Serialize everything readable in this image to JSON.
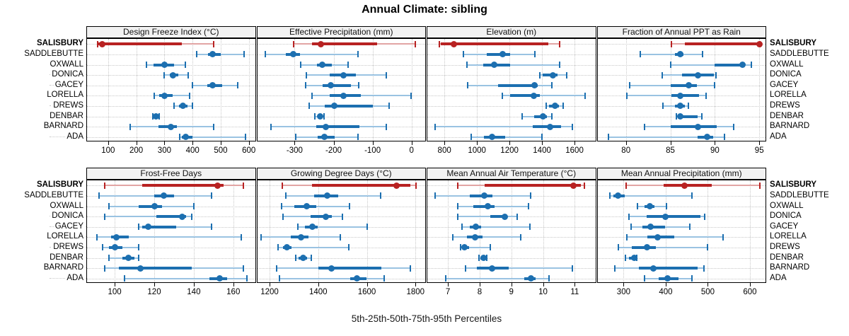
{
  "title": "Annual Climate: sibling",
  "footer": "5th-25th-50th-75th-95th Percentiles",
  "colors": {
    "highlight": "#b82222",
    "highlight_light": "#e2a5a4",
    "normal": "#1c6fb0",
    "normal_light": "#9ac3e2",
    "strip_bg": "#f2f2f2",
    "grid": "#c8c8c8"
  },
  "stations": [
    {
      "name": "SALISBURY",
      "highlight": true
    },
    {
      "name": "SADDLEBUTTE",
      "highlight": false
    },
    {
      "name": "OXWALL",
      "highlight": false
    },
    {
      "name": "DONICA",
      "highlight": false
    },
    {
      "name": "GACEY",
      "highlight": false
    },
    {
      "name": "LORELLA",
      "highlight": false
    },
    {
      "name": "DREWS",
      "highlight": false
    },
    {
      "name": "DENBAR",
      "highlight": false
    },
    {
      "name": "BARNARD",
      "highlight": false
    },
    {
      "name": "ADA",
      "highlight": false
    }
  ],
  "chart_data": {
    "type": "dotplot-percentiles",
    "percentile_labels": [
      "5th",
      "25th",
      "50th",
      "75th",
      "95th"
    ],
    "layout": {
      "rows": 2,
      "cols": 4,
      "grid": "dotted",
      "legend": "none"
    },
    "panels": [
      {
        "title": "Design Freeze Index (°C)",
        "domain": [
          25,
          622
        ],
        "ticks": [
          100,
          200,
          300,
          400,
          500,
          600
        ],
        "series": [
          [
            63,
            66,
            80,
            363,
            475
          ],
          [
            415,
            455,
            470,
            500,
            583
          ],
          [
            235,
            262,
            300,
            335,
            375
          ],
          [
            300,
            318,
            330,
            350,
            385
          ],
          [
            400,
            452,
            472,
            505,
            560
          ],
          [
            264,
            282,
            300,
            330,
            389
          ],
          [
            333,
            352,
            365,
            381,
            400
          ],
          [
            258,
            264,
            270,
            276,
            282
          ],
          [
            178,
            280,
            323,
            345,
            475
          ],
          [
            354,
            362,
            375,
            400,
            588
          ]
        ]
      },
      {
        "title": "Effective Precipitation (mm)",
        "domain": [
          -396,
          35
        ],
        "ticks": [
          -300,
          -200,
          -100,
          0
        ],
        "series": [
          [
            -302,
            -255,
            -232,
            -88,
            10
          ],
          [
            -376,
            -322,
            -303,
            -287,
            -137
          ],
          [
            -285,
            -243,
            -229,
            -204,
            -163
          ],
          [
            -270,
            -210,
            -174,
            -143,
            -65
          ],
          [
            -272,
            -228,
            -208,
            -155,
            -135
          ],
          [
            -255,
            -210,
            -174,
            -131,
            -2
          ],
          [
            -262,
            -222,
            -199,
            -100,
            -57
          ],
          [
            -248,
            -241,
            -235,
            -229,
            -224
          ],
          [
            -360,
            -245,
            -220,
            -134,
            -65
          ],
          [
            -297,
            -240,
            -224,
            -198,
            -137
          ]
        ]
      },
      {
        "title": "Elevation (m)",
        "domain": [
          695,
          1728
        ],
        "ticks": [
          800,
          1000,
          1200,
          1400,
          1600
        ],
        "series": [
          [
            768,
            778,
            860,
            1440,
            1508
          ],
          [
            915,
            1060,
            1160,
            1205,
            1355
          ],
          [
            940,
            1040,
            1105,
            1205,
            1508
          ],
          [
            1385,
            1403,
            1468,
            1495,
            1550
          ],
          [
            945,
            1130,
            1352,
            1372,
            1462
          ],
          [
            1155,
            1205,
            1350,
            1385,
            1663
          ],
          [
            1425,
            1445,
            1480,
            1502,
            1528
          ],
          [
            1276,
            1350,
            1404,
            1430,
            1462
          ],
          [
            745,
            1343,
            1450,
            1515,
            1585
          ],
          [
            963,
            1045,
            1095,
            1175,
            1400
          ]
        ]
      },
      {
        "title": "Fraction of Annual PPT as Rain",
        "domain": [
          76.8,
          95.7
        ],
        "ticks": [
          80,
          85,
          90,
          95
        ],
        "series": [
          [
            85.1,
            86.6,
            95.0,
            95.0,
            95.1
          ],
          [
            81.6,
            85.5,
            86.1,
            86.5,
            88.6
          ],
          [
            85.0,
            90.0,
            93.1,
            93.4,
            94.1
          ],
          [
            84.1,
            86.3,
            88.1,
            89.9,
            90.1
          ],
          [
            80.4,
            85.0,
            87.1,
            88.0,
            90.0
          ],
          [
            80.1,
            85.1,
            86.1,
            88.2,
            89.0
          ],
          [
            84.2,
            85.5,
            86.1,
            86.6,
            87.0
          ],
          [
            85.7,
            85.9,
            86.1,
            88.1,
            88.5
          ],
          [
            82.1,
            85.0,
            88.1,
            90.2,
            92.1
          ],
          [
            78.0,
            88.1,
            89.1,
            89.8,
            91.1
          ]
        ]
      },
      {
        "title": "Frost-Free Days",
        "domain": [
          86,
          171
        ],
        "ticks": [
          100,
          120,
          140,
          160
        ],
        "series": [
          [
            95,
            114,
            152,
            155,
            165
          ],
          [
            92,
            120,
            125,
            130,
            149
          ],
          [
            97,
            112,
            120,
            124,
            140
          ],
          [
            95,
            121,
            134,
            136,
            139
          ],
          [
            112,
            114,
            117,
            131,
            149
          ],
          [
            91,
            98,
            101,
            107,
            164
          ],
          [
            94,
            97,
            100,
            104,
            112
          ],
          [
            97,
            104,
            107,
            110,
            112
          ],
          [
            95,
            102,
            113,
            139,
            165
          ],
          [
            105,
            148,
            153,
            157,
            167
          ]
        ]
      },
      {
        "title": "Growing Degree Days (°C)",
        "domain": [
          1149,
          1840
        ],
        "ticks": [
          1200,
          1400,
          1600,
          1800
        ],
        "series": [
          [
            1253,
            1375,
            1722,
            1778,
            1802
          ],
          [
            1268,
            1383,
            1437,
            1481,
            1657
          ],
          [
            1249,
            1303,
            1354,
            1393,
            1528
          ],
          [
            1255,
            1369,
            1432,
            1457,
            1500
          ],
          [
            1315,
            1344,
            1377,
            1398,
            1601
          ],
          [
            1166,
            1286,
            1328,
            1361,
            1491
          ],
          [
            1234,
            1254,
            1271,
            1289,
            1525
          ],
          [
            1308,
            1320,
            1338,
            1354,
            1371
          ],
          [
            1230,
            1400,
            1455,
            1660,
            1780
          ],
          [
            1240,
            1533,
            1558,
            1598,
            1670
          ]
        ]
      },
      {
        "title": "Mean Annual Air Temperature (°C)",
        "domain": [
          6.35,
          11.65
        ],
        "ticks": [
          7,
          8,
          9,
          10,
          11
        ],
        "series": [
          [
            7.3,
            8.15,
            10.95,
            11.2,
            11.3
          ],
          [
            6.6,
            7.7,
            8.15,
            8.4,
            9.6
          ],
          [
            7.3,
            7.8,
            8.25,
            8.47,
            9.55
          ],
          [
            7.3,
            8.33,
            8.79,
            8.88,
            9.18
          ],
          [
            7.45,
            7.7,
            7.87,
            8.05,
            9.59
          ],
          [
            7.15,
            7.59,
            7.86,
            8.1,
            9.3
          ],
          [
            7.39,
            7.44,
            7.53,
            7.66,
            8.33
          ],
          [
            7.97,
            8.03,
            8.12,
            8.19,
            8.22
          ],
          [
            7.55,
            7.92,
            8.39,
            8.92,
            10.92
          ],
          [
            6.92,
            9.4,
            9.62,
            9.76,
            10.18
          ]
        ]
      },
      {
        "title": "Mean Annual Precipitation (mm)",
        "domain": [
          238,
          637
        ],
        "ticks": [
          300,
          400,
          500,
          600
        ],
        "series": [
          [
            306,
            395,
            445,
            510,
            624
          ],
          [
            268,
            276,
            287,
            302,
            462
          ],
          [
            333,
            350,
            362,
            373,
            402
          ],
          [
            313,
            355,
            400,
            483,
            493
          ],
          [
            318,
            344,
            364,
            398,
            458
          ],
          [
            307,
            357,
            381,
            421,
            536
          ],
          [
            287,
            319,
            355,
            376,
            499
          ],
          [
            305,
            313,
            326,
            329,
            331
          ],
          [
            279,
            336,
            370,
            475,
            490
          ],
          [
            349,
            384,
            404,
            430,
            462
          ]
        ]
      }
    ]
  }
}
